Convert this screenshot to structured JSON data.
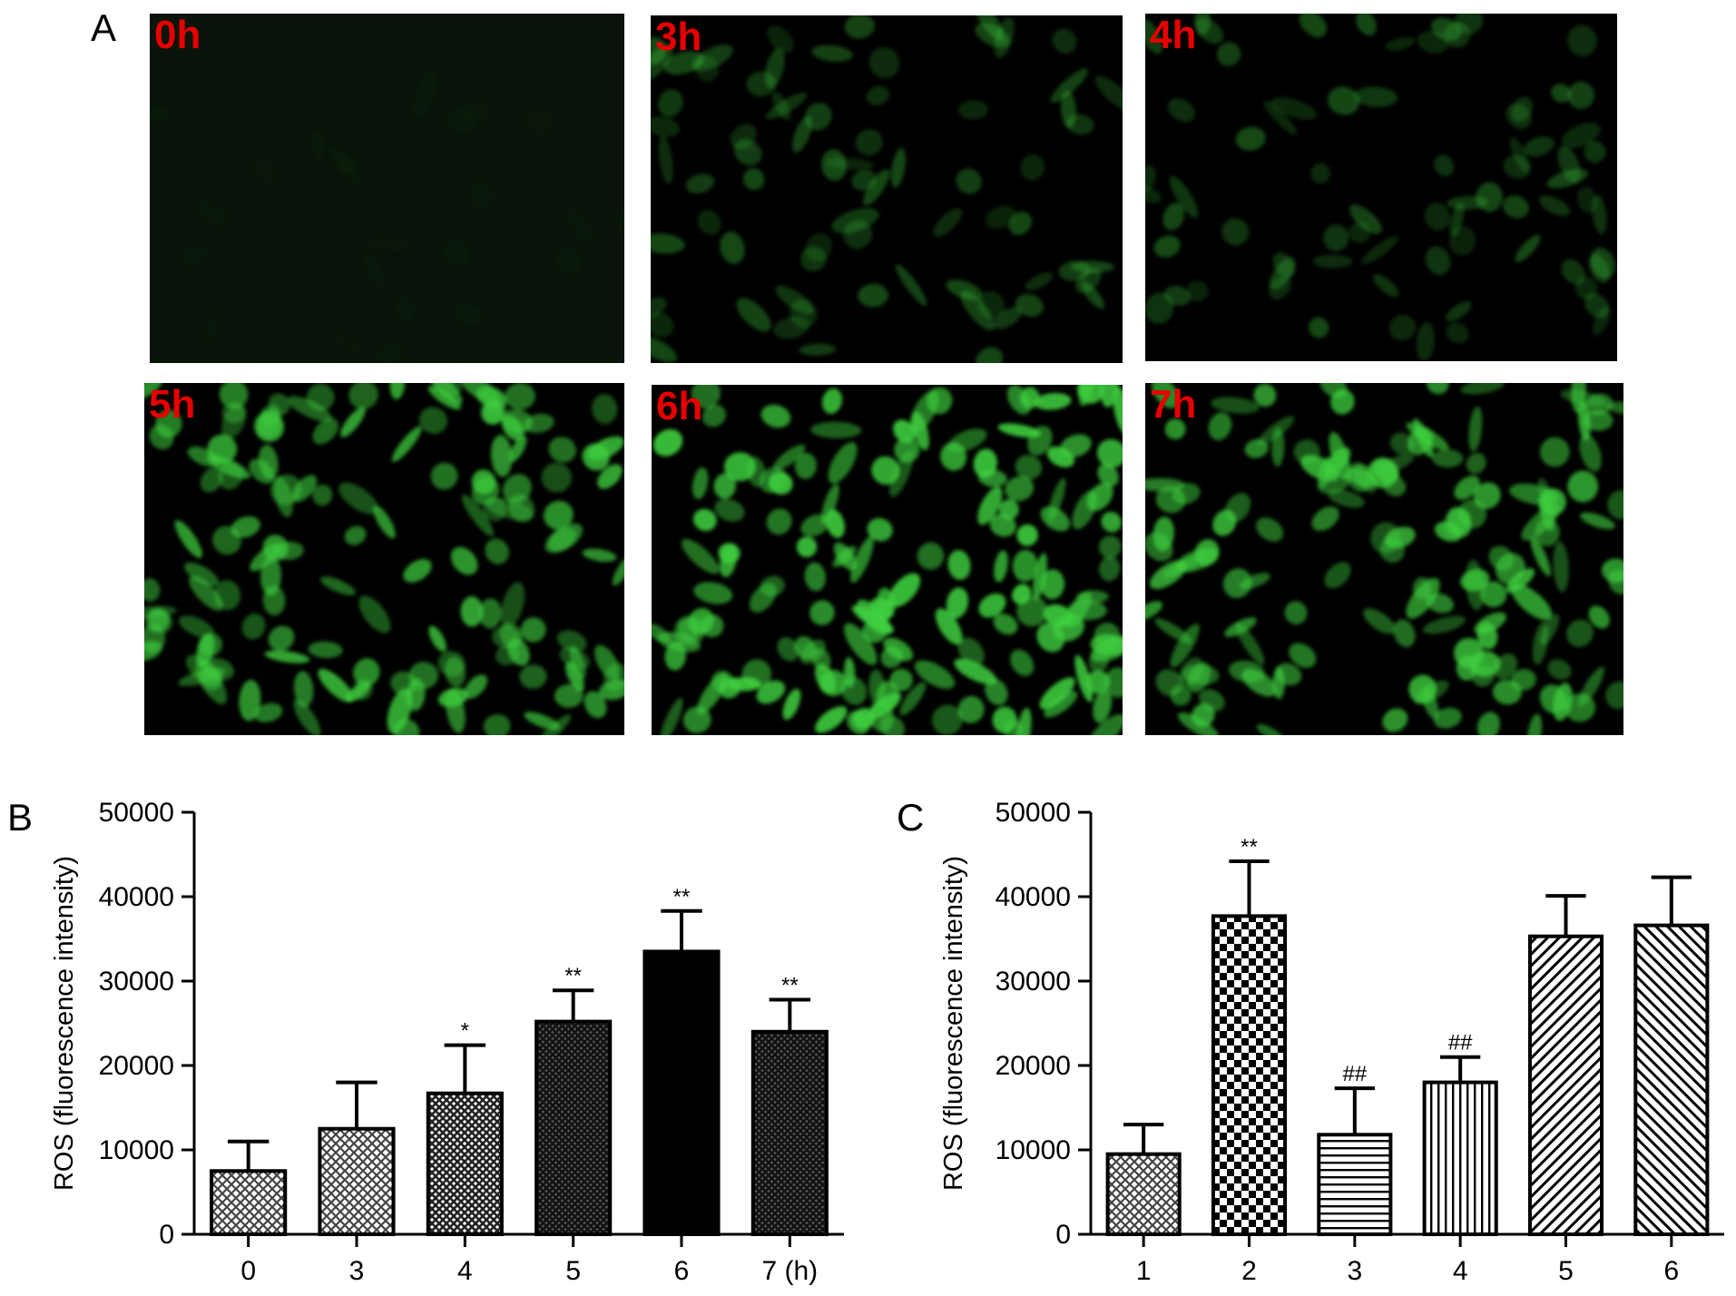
{
  "panels": {
    "A": {
      "letter": "A",
      "images": [
        {
          "label": "0h",
          "intensity": 0.03
        },
        {
          "label": "3h",
          "intensity": 0.35
        },
        {
          "label": "4h",
          "intensity": 0.35
        },
        {
          "label": "5h",
          "intensity": 0.8
        },
        {
          "label": "6h",
          "intensity": 0.9
        },
        {
          "label": "7h",
          "intensity": 0.8
        }
      ]
    },
    "B": {
      "letter": "B"
    },
    "C": {
      "letter": "C"
    }
  },
  "colors": {
    "panel_label": "#e60000",
    "fluorescence": "#3fd13f",
    "background": "#000000",
    "axis": "#000000"
  },
  "chart_data": [
    {
      "type": "bar",
      "panel": "B",
      "categories": [
        "0",
        "3",
        "4",
        "5",
        "6",
        "7 (h)"
      ],
      "values": [
        7500,
        12500,
        16700,
        25200,
        33500,
        24000
      ],
      "errors": [
        3500,
        5500,
        5700,
        3700,
        4800,
        3800
      ],
      "annotations": [
        "",
        "",
        "*",
        "**",
        "**",
        "**"
      ],
      "fills": [
        "crosshatch-light",
        "crosshatch-light",
        "crosshatch-medium",
        "crosshatch-dark",
        "solid-black",
        "crosshatch-dark"
      ],
      "ylabel": "ROS (fluorescence intensity)",
      "xlabel": "",
      "ylim": [
        0,
        50000
      ],
      "yticks": [
        0,
        10000,
        20000,
        30000,
        40000,
        50000
      ],
      "grid": false
    },
    {
      "type": "bar",
      "panel": "C",
      "categories": [
        "1",
        "2",
        "3",
        "4",
        "5",
        "6"
      ],
      "values": [
        9500,
        37700,
        11800,
        18000,
        35300,
        36600
      ],
      "errors": [
        3500,
        6500,
        5500,
        3000,
        4800,
        5700
      ],
      "annotations": [
        "",
        "**",
        "##",
        "##",
        "",
        ""
      ],
      "fills": [
        "crosshatch-light",
        "checker",
        "horizontal-lines",
        "vertical-lines",
        "diagonal-right",
        "diagonal-left"
      ],
      "ylabel": "ROS (fluorescence intensity)",
      "xlabel": "",
      "ylim": [
        0,
        50000
      ],
      "yticks": [
        0,
        10000,
        20000,
        30000,
        40000,
        50000
      ],
      "grid": false
    }
  ]
}
